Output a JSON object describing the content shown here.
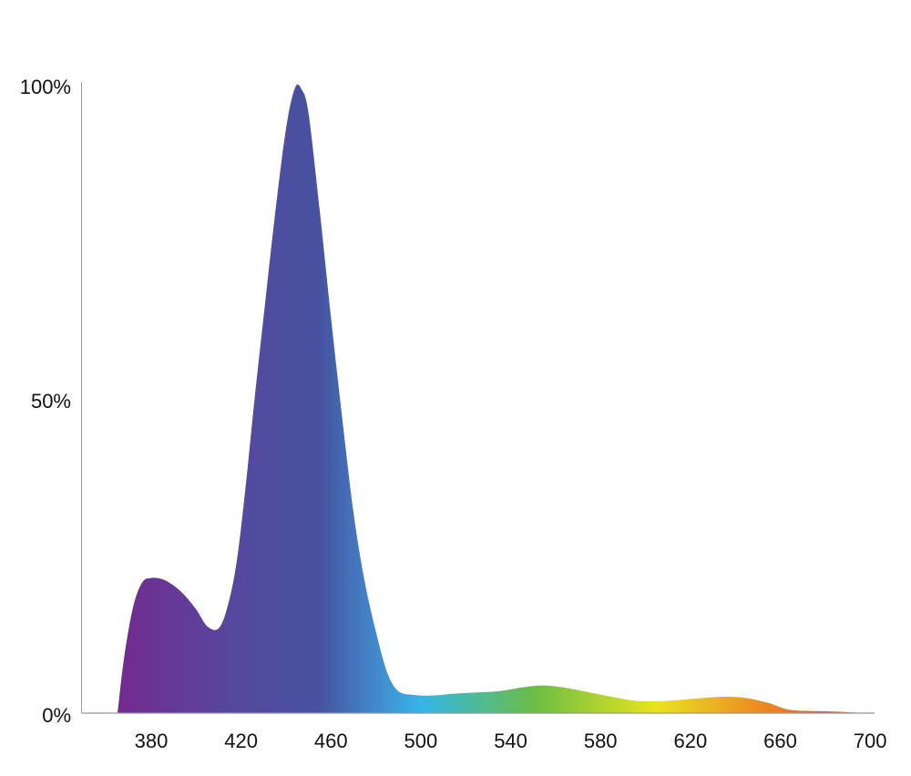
{
  "chart_data": {
    "type": "area",
    "title": "",
    "xlabel": "",
    "ylabel": "",
    "xlim": [
      349,
      702
    ],
    "ylim": [
      0,
      100
    ],
    "x_ticks": [
      380,
      420,
      460,
      500,
      540,
      580,
      620,
      660,
      700
    ],
    "x_tick_labels": [
      "380",
      "420",
      "460",
      "500",
      "540",
      "580",
      "620",
      "660",
      "700"
    ],
    "y_ticks": [
      0,
      50,
      100
    ],
    "y_tick_labels": [
      "0%",
      "50%",
      "100%"
    ],
    "grid": false,
    "series": [
      {
        "x": [
          365,
          368,
          372,
          376,
          380,
          385,
          390,
          395,
          400,
          405,
          410,
          414,
          418,
          422,
          426,
          430,
          435,
          440,
          444,
          447,
          450,
          455,
          460,
          465,
          470,
          475,
          480,
          485,
          490,
          497,
          505,
          515,
          525,
          535,
          545,
          555,
          565,
          575,
          585,
          595,
          605,
          615,
          625,
          635,
          645,
          655,
          662,
          668,
          680,
          690,
          701
        ],
        "y": [
          0,
          9,
          17,
          20.8,
          21.5,
          21.3,
          20.3,
          18.7,
          16.5,
          13.8,
          13.5,
          17,
          24,
          36,
          50,
          63,
          79,
          93,
          99.5,
          99.2,
          95.5,
          80,
          63,
          47,
          32,
          21,
          13,
          6.5,
          3.5,
          2.9,
          2.8,
          3.1,
          3.3,
          3.5,
          4.1,
          4.4,
          4,
          3.3,
          2.6,
          2,
          1.9,
          2.1,
          2.4,
          2.6,
          2.4,
          1.6,
          0.7,
          0.4,
          0.3,
          0.15,
          0
        ]
      }
    ],
    "gradient_colors": [
      {
        "nm": 365,
        "color": "#732b8f"
      },
      {
        "nm": 420,
        "color": "#5449a0"
      },
      {
        "nm": 455,
        "color": "#4652a0"
      },
      {
        "nm": 480,
        "color": "#4289cc"
      },
      {
        "nm": 500,
        "color": "#35b5e8"
      },
      {
        "nm": 550,
        "color": "#6abd45"
      },
      {
        "nm": 605,
        "color": "#e8e41e"
      },
      {
        "nm": 650,
        "color": "#ed8c22"
      },
      {
        "nm": 700,
        "color": "#e33d29"
      }
    ],
    "axis_color": "#999999"
  }
}
